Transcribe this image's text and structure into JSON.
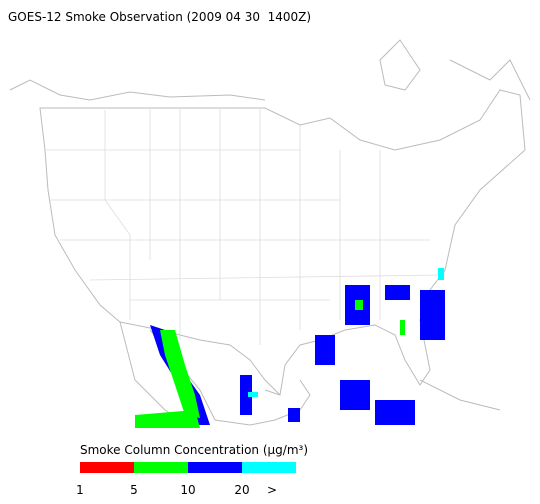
{
  "title": "GOES-12 Smoke Observation (2009 04 30  1400Z)",
  "legend": {
    "title": "Smoke Column Concentration (μg/m³)",
    "colors": [
      "#ff0000",
      "#00ff00",
      "#0000ff",
      "#00ffff"
    ],
    "labels": [
      "1",
      "5",
      "10",
      "20",
      ">"
    ]
  }
}
